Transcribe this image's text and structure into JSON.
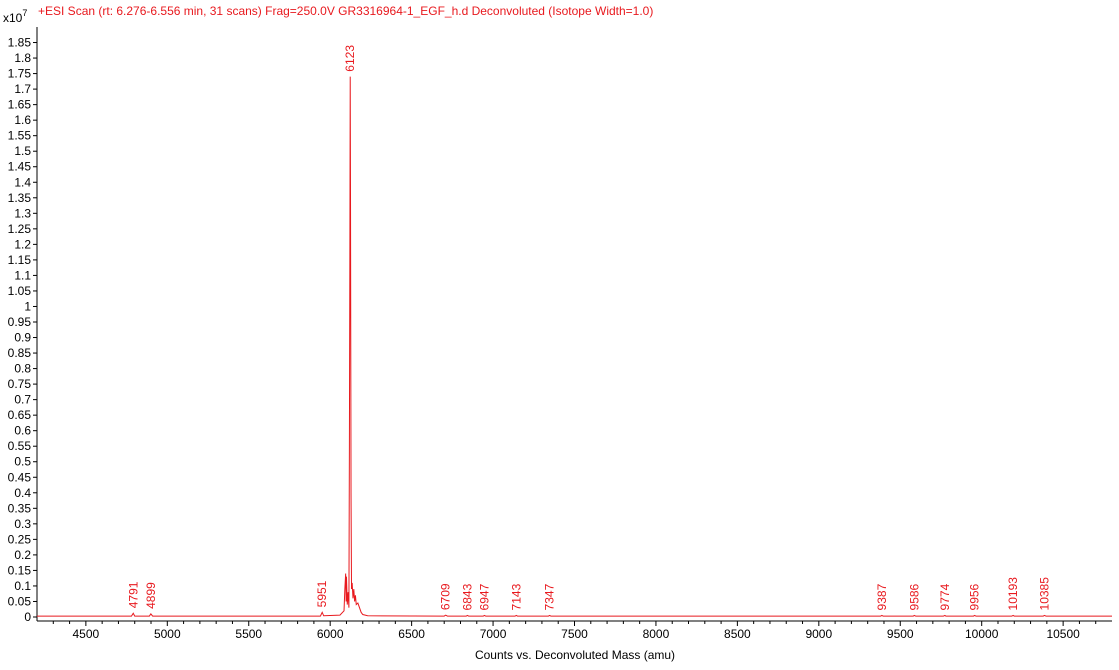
{
  "chart_data": {
    "type": "line",
    "title": "+ESI Scan (rt: 6.276-6.556 min, 31 scans) Frag=250.0V GR3316964-1_EGF_h.d  Deconvoluted (Isotope Width=1.0)",
    "xlabel": "Counts vs. Deconvoluted Mass (amu)",
    "ylabel": "",
    "y_multiplier_label": "x10",
    "y_multiplier_exponent": "7",
    "xlim": [
      4200,
      10800
    ],
    "ylim": [
      0,
      1.9
    ],
    "grid": false,
    "x_ticks": [
      4500,
      5000,
      5500,
      6000,
      6500,
      7000,
      7500,
      8000,
      8500,
      9000,
      9500,
      10000,
      10500
    ],
    "y_ticks": [
      0,
      0.05,
      0.1,
      0.15,
      0.2,
      0.25,
      0.3,
      0.35,
      0.4,
      0.45,
      0.5,
      0.55,
      0.6,
      0.65,
      0.7,
      0.75,
      0.8,
      0.85,
      0.9,
      0.95,
      1,
      1.05,
      1.1,
      1.15,
      1.2,
      1.25,
      1.3,
      1.35,
      1.4,
      1.45,
      1.5,
      1.55,
      1.6,
      1.65,
      1.7,
      1.75,
      1.8,
      1.85
    ],
    "series": [
      {
        "color": "#e8191e",
        "x": [
          4200,
          4780,
          4791,
          4800,
          4890,
          4899,
          4910,
          5940,
          5951,
          5960,
          6060,
          6085,
          6090,
          6095,
          6098,
          6100,
          6105,
          6110,
          6115,
          6118,
          6121,
          6123,
          6125,
          6128,
          6131,
          6135,
          6140,
          6145,
          6150,
          6155,
          6160,
          6170,
          6180,
          6190,
          6200,
          6230,
          6700,
          6709,
          6720,
          6835,
          6843,
          6850,
          6940,
          6947,
          6955,
          7135,
          7143,
          7150,
          7340,
          7347,
          7355,
          9380,
          9387,
          9395,
          9580,
          9586,
          9595,
          9765,
          9774,
          9780,
          9950,
          9956,
          9965,
          10185,
          10193,
          10200,
          10378,
          10385,
          10395,
          10800
        ],
        "y": [
          0.003,
          0.003,
          0.012,
          0.003,
          0.003,
          0.01,
          0.003,
          0.003,
          0.015,
          0.004,
          0.006,
          0.02,
          0.09,
          0.14,
          0.05,
          0.13,
          0.04,
          0.08,
          0.03,
          0.55,
          1.2,
          1.74,
          1.3,
          0.4,
          0.09,
          0.11,
          0.06,
          0.09,
          0.05,
          0.07,
          0.04,
          0.045,
          0.03,
          0.015,
          0.008,
          0.004,
          0.003,
          0.006,
          0.003,
          0.003,
          0.005,
          0.003,
          0.003,
          0.005,
          0.003,
          0.003,
          0.005,
          0.003,
          0.003,
          0.005,
          0.003,
          0.003,
          0.005,
          0.003,
          0.003,
          0.005,
          0.003,
          0.003,
          0.005,
          0.003,
          0.003,
          0.005,
          0.003,
          0.003,
          0.005,
          0.003,
          0.003,
          0.005,
          0.003,
          0.003
        ]
      }
    ],
    "annotations": [
      {
        "text": "4791",
        "x": 4791,
        "y": 0.012
      },
      {
        "text": "4899",
        "x": 4899,
        "y": 0.01
      },
      {
        "text": "5951",
        "x": 5951,
        "y": 0.015
      },
      {
        "text": "6123",
        "x": 6123,
        "y": 1.74
      },
      {
        "text": "6709",
        "x": 6709,
        "y": 0.006
      },
      {
        "text": "6843",
        "x": 6843,
        "y": 0.005
      },
      {
        "text": "6947",
        "x": 6947,
        "y": 0.005
      },
      {
        "text": "7143",
        "x": 7143,
        "y": 0.005
      },
      {
        "text": "7347",
        "x": 7347,
        "y": 0.005
      },
      {
        "text": "9387",
        "x": 9387,
        "y": 0.005
      },
      {
        "text": "9586",
        "x": 9586,
        "y": 0.005
      },
      {
        "text": "9774",
        "x": 9774,
        "y": 0.005
      },
      {
        "text": "9956",
        "x": 9956,
        "y": 0.005
      },
      {
        "text": "10193",
        "x": 10193,
        "y": 0.005
      },
      {
        "text": "10385",
        "x": 10385,
        "y": 0.005
      }
    ],
    "colors": {
      "trace": "#e8191e",
      "axis": "#000000",
      "title": "#e8191e"
    }
  }
}
